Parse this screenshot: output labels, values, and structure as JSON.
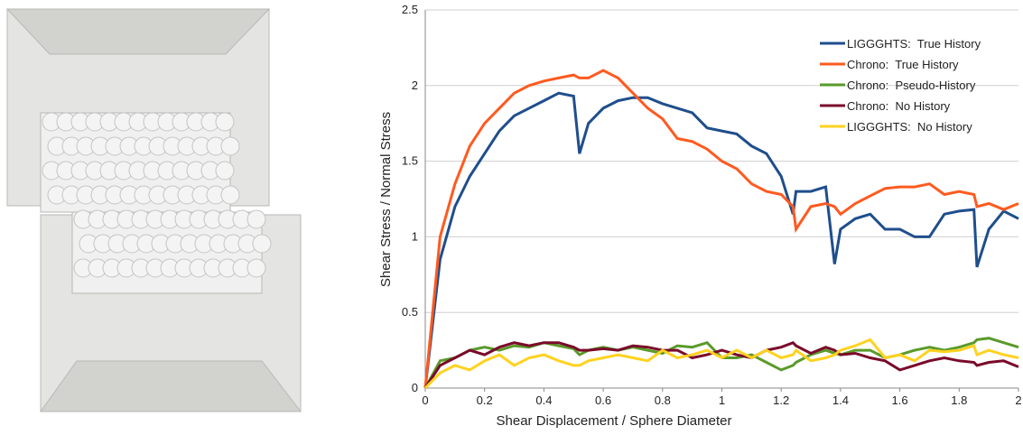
{
  "chart_data": {
    "type": "line",
    "xlabel": "Shear Displacement / Sphere Diameter",
    "ylabel": "Shear Stress / Normal Stress",
    "x": [
      0,
      0.05,
      0.1,
      0.15,
      0.2,
      0.25,
      0.3,
      0.35,
      0.4,
      0.45,
      0.5,
      0.52,
      0.55,
      0.6,
      0.65,
      0.7,
      0.75,
      0.8,
      0.85,
      0.9,
      0.95,
      1.0,
      1.05,
      1.1,
      1.15,
      1.2,
      1.24,
      1.25,
      1.3,
      1.35,
      1.38,
      1.4,
      1.45,
      1.5,
      1.55,
      1.6,
      1.65,
      1.7,
      1.75,
      1.8,
      1.85,
      1.86,
      1.9,
      1.95,
      2.0
    ],
    "series": [
      {
        "name": "LIGGGHTS:  True History",
        "color": "#1f4e8c",
        "values": [
          0,
          0.85,
          1.2,
          1.4,
          1.55,
          1.7,
          1.8,
          1.85,
          1.9,
          1.95,
          1.93,
          1.55,
          1.75,
          1.85,
          1.9,
          1.92,
          1.92,
          1.88,
          1.85,
          1.82,
          1.72,
          1.7,
          1.68,
          1.6,
          1.55,
          1.4,
          1.15,
          1.3,
          1.3,
          1.33,
          0.82,
          1.05,
          1.12,
          1.15,
          1.05,
          1.05,
          1.0,
          1.0,
          1.15,
          1.17,
          1.18,
          0.8,
          1.05,
          1.17,
          1.12
        ]
      },
      {
        "name": "Chrono:  True History",
        "color": "#ff5a1f",
        "values": [
          0,
          1.0,
          1.35,
          1.6,
          1.75,
          1.85,
          1.95,
          2.0,
          2.03,
          2.05,
          2.07,
          2.05,
          2.05,
          2.1,
          2.05,
          1.95,
          1.85,
          1.78,
          1.65,
          1.63,
          1.58,
          1.5,
          1.45,
          1.35,
          1.3,
          1.28,
          1.2,
          1.05,
          1.2,
          1.22,
          1.2,
          1.15,
          1.22,
          1.27,
          1.32,
          1.33,
          1.33,
          1.35,
          1.28,
          1.3,
          1.28,
          1.2,
          1.22,
          1.18,
          1.22
        ]
      },
      {
        "name": "Chrono:  Pseudo-History",
        "color": "#5a9a2a",
        "values": [
          0,
          0.18,
          0.2,
          0.25,
          0.27,
          0.25,
          0.28,
          0.27,
          0.3,
          0.28,
          0.26,
          0.22,
          0.25,
          0.27,
          0.25,
          0.27,
          0.25,
          0.23,
          0.28,
          0.27,
          0.3,
          0.2,
          0.2,
          0.22,
          0.17,
          0.12,
          0.15,
          0.17,
          0.22,
          0.25,
          0.23,
          0.22,
          0.25,
          0.25,
          0.2,
          0.22,
          0.25,
          0.27,
          0.25,
          0.27,
          0.3,
          0.32,
          0.33,
          0.3,
          0.27
        ]
      },
      {
        "name": "Chrono:  No History",
        "color": "#7a0a2a",
        "values": [
          0,
          0.15,
          0.2,
          0.25,
          0.22,
          0.27,
          0.3,
          0.28,
          0.3,
          0.3,
          0.27,
          0.25,
          0.25,
          0.26,
          0.25,
          0.28,
          0.27,
          0.25,
          0.25,
          0.2,
          0.22,
          0.25,
          0.22,
          0.2,
          0.25,
          0.27,
          0.3,
          0.28,
          0.23,
          0.27,
          0.25,
          0.22,
          0.23,
          0.2,
          0.18,
          0.12,
          0.15,
          0.18,
          0.2,
          0.18,
          0.17,
          0.15,
          0.17,
          0.18,
          0.14
        ]
      },
      {
        "name": "LIGGGHTS:  No History",
        "color": "#ffd21f",
        "values": [
          0,
          0.1,
          0.15,
          0.12,
          0.18,
          0.22,
          0.15,
          0.2,
          0.22,
          0.18,
          0.15,
          0.15,
          0.18,
          0.2,
          0.22,
          0.2,
          0.18,
          0.25,
          0.2,
          0.22,
          0.25,
          0.2,
          0.25,
          0.2,
          0.25,
          0.2,
          0.22,
          0.25,
          0.18,
          0.2,
          0.22,
          0.25,
          0.28,
          0.32,
          0.2,
          0.22,
          0.18,
          0.25,
          0.24,
          0.25,
          0.28,
          0.22,
          0.25,
          0.22,
          0.2
        ]
      }
    ],
    "xlim": [
      0,
      2
    ],
    "xticks": [
      0,
      0.2,
      0.4,
      0.6,
      0.8,
      1,
      1.2,
      1.4,
      1.6,
      1.8,
      2
    ],
    "ylim": [
      0,
      2.5
    ],
    "yticks": [
      0,
      0.5,
      1,
      1.5,
      2,
      2.5
    ],
    "grid": true,
    "legend": "upper right"
  }
}
